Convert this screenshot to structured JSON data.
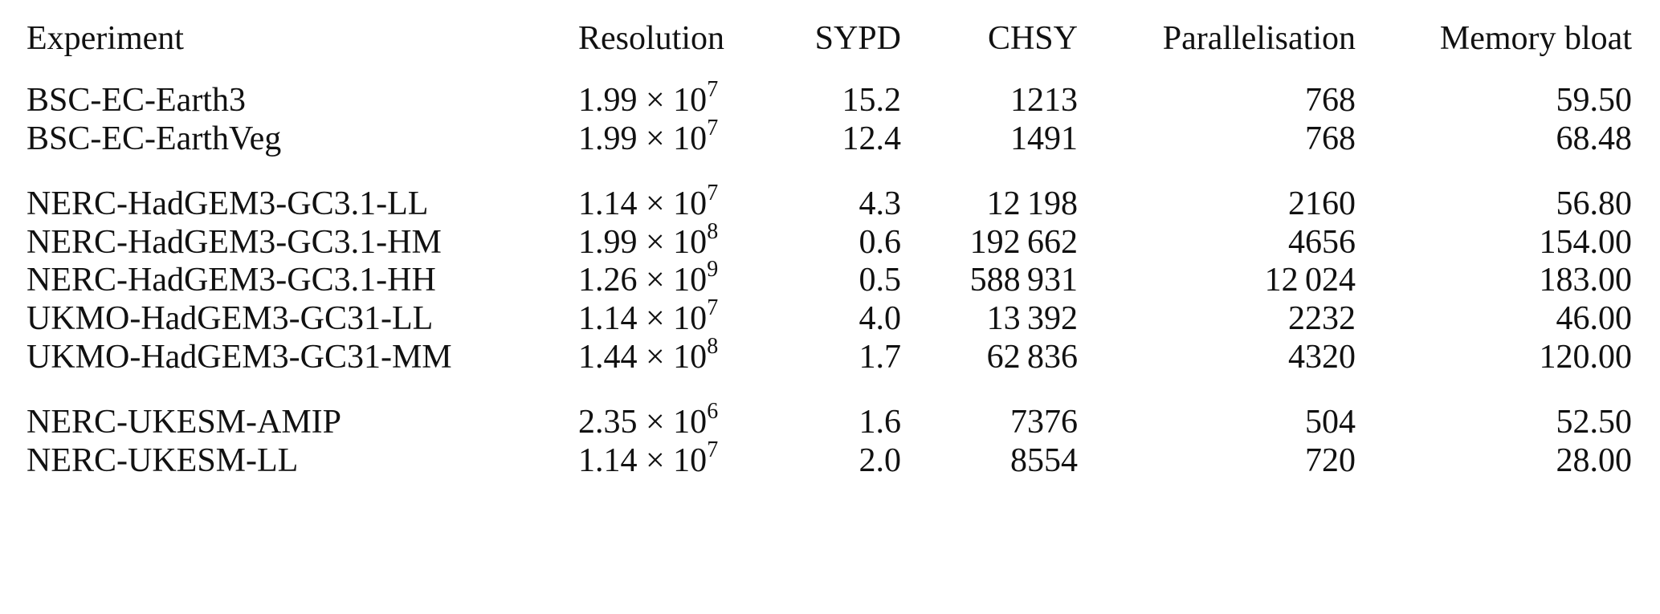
{
  "table": {
    "header": [
      "Experiment",
      "Resolution",
      "SYPD",
      "CHSY",
      "Parallelisation",
      "Memory bloat"
    ],
    "groups": [
      [
        [
          "BSC-EC-Earth3",
          {
            "base": "1.99 × 10",
            "exponent": "7"
          },
          "15.2",
          "1213",
          "768",
          "59.50"
        ],
        [
          "BSC-EC-EarthVeg",
          {
            "base": "1.99 × 10",
            "exponent": "7"
          },
          "12.4",
          "1491",
          "768",
          "68.48"
        ]
      ],
      [
        [
          "NERC-HadGEM3-GC3.1-LL",
          {
            "base": "1.14 × 10",
            "exponent": "7"
          },
          "4.3",
          "12 198",
          "2160",
          "56.80"
        ],
        [
          "NERC-HadGEM3-GC3.1-HM",
          {
            "base": "1.99 × 10",
            "exponent": "8"
          },
          "0.6",
          "192 662",
          "4656",
          "154.00"
        ],
        [
          "NERC-HadGEM3-GC3.1-HH",
          {
            "base": "1.26 × 10",
            "exponent": "9"
          },
          "0.5",
          "588 931",
          "12 024",
          "183.00"
        ],
        [
          "UKMO-HadGEM3-GC31-LL",
          {
            "base": "1.14 × 10",
            "exponent": "7"
          },
          "4.0",
          "13 392",
          "2232",
          "46.00"
        ],
        [
          "UKMO-HadGEM3-GC31-MM",
          {
            "base": "1.44 × 10",
            "exponent": "8"
          },
          "1.7",
          "62 836",
          "4320",
          "120.00"
        ]
      ],
      [
        [
          "NERC-UKESM-AMIP",
          {
            "base": "2.35 × 10",
            "exponent": "6"
          },
          "1.6",
          "7376",
          "504",
          "52.50"
        ],
        [
          "NERC-UKESM-LL",
          {
            "base": "1.14 × 10",
            "exponent": "7"
          },
          "2.0",
          "8554",
          "720",
          "28.00"
        ]
      ]
    ]
  }
}
